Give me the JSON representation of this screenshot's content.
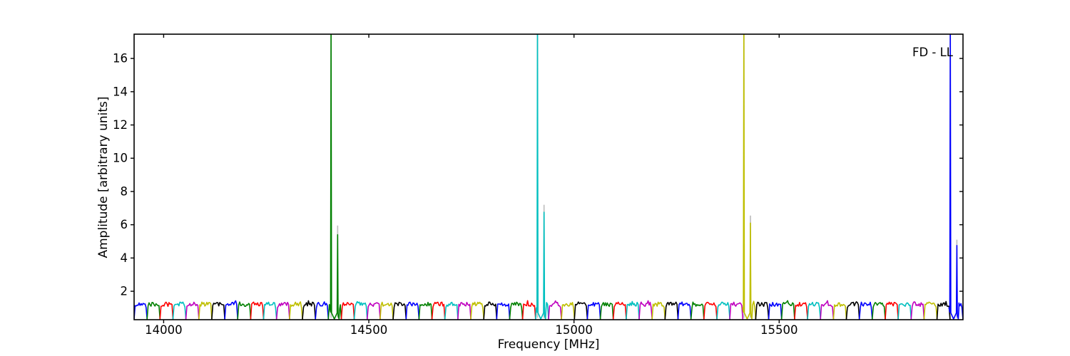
{
  "figure": {
    "background": "#ffffff"
  },
  "chart_data": {
    "type": "line",
    "title": "",
    "xlabel": "Frequency [MHz]",
    "ylabel": "Amplitude [arbitrary units]",
    "corner_label": "FD - LL",
    "xlim": [
      13928,
      15948
    ],
    "ylim": [
      0.29,
      17.46
    ],
    "xticks": [
      14000,
      14500,
      15000,
      15500
    ],
    "yticks": [
      2,
      4,
      6,
      8,
      10,
      12,
      14,
      16
    ],
    "grid": false,
    "legend_position": "none",
    "axes_color": "#000000",
    "tick_length": 5,
    "color_cycle": [
      "#0000ff",
      "#008000",
      "#ff0000",
      "#00bfbf",
      "#bf00bf",
      "#bfbf00",
      "#000000"
    ],
    "ghost_color": "#c2c2c2",
    "baseline": {
      "description": "repeating bandpass-shaped sub-band segments, colors cycling through color_cycle",
      "start_freq": 13928,
      "period_mhz": 31.56,
      "num_bands": 64,
      "plateau_level": 1.22,
      "noise_amp": 0.13,
      "gap_level": 0.33,
      "ramp_frac": 0.09,
      "samples_per_band": 13
    },
    "spike_groups": [
      {
        "band_color": "#008000",
        "tall_freq": 14408,
        "tall_peak": 18,
        "short_freq": 14424,
        "short_peak": 5.4,
        "ghost_peak": 5.95
      },
      {
        "band_color": "#00bfbf",
        "tall_freq": 14911,
        "tall_peak": 18,
        "short_freq": 14927,
        "short_peak": 6.75,
        "ghost_peak": 7.2
      },
      {
        "band_color": "#bfbf00",
        "tall_freq": 15414,
        "tall_peak": 18,
        "short_freq": 15430,
        "short_peak": 6.1,
        "ghost_peak": 6.55
      },
      {
        "band_color": "#0000ff",
        "tall_freq": 15917,
        "tall_peak": 18,
        "short_freq": 15933,
        "short_peak": 4.75,
        "ghost_peak": 5.1
      }
    ]
  }
}
